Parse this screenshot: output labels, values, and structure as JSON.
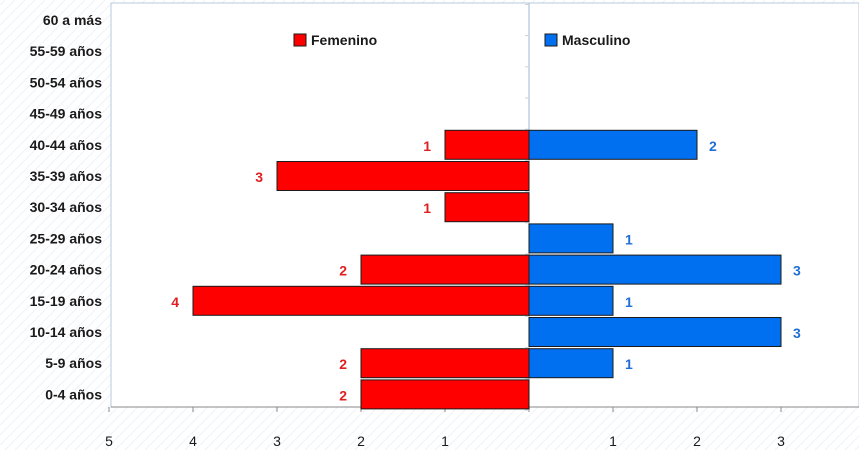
{
  "chart_data": {
    "type": "bar",
    "orientation": "horizontal",
    "categories": [
      "60 a más",
      "55-59 años",
      "50-54 años",
      "45-49 años",
      "40-44 años",
      "35-39 años",
      "30-34 años",
      "25-29 años",
      "20-24 años",
      "15-19 años",
      "10-14 años",
      "5-9 años",
      "0-4 años"
    ],
    "series": [
      {
        "name": "Femenino",
        "color": "#ff0000",
        "label_color": "#e02020",
        "side": "left",
        "values": [
          0,
          0,
          0,
          0,
          1,
          3,
          1,
          0,
          2,
          4,
          0,
          2,
          2
        ]
      },
      {
        "name": "Masculino",
        "color": "#0070f0",
        "label_color": "#1f6fd6",
        "side": "right",
        "values": [
          0,
          0,
          0,
          0,
          2,
          0,
          0,
          1,
          3,
          1,
          3,
          1,
          0
        ]
      }
    ],
    "x_ticks_left": [
      "5",
      "4",
      "3",
      "2",
      "1"
    ],
    "x_ticks_right": [
      "1",
      "2",
      "3"
    ],
    "xlim": [
      -5,
      4
    ],
    "legend_position": "top",
    "grid": false,
    "title": "",
    "xlabel": "",
    "ylabel": ""
  }
}
